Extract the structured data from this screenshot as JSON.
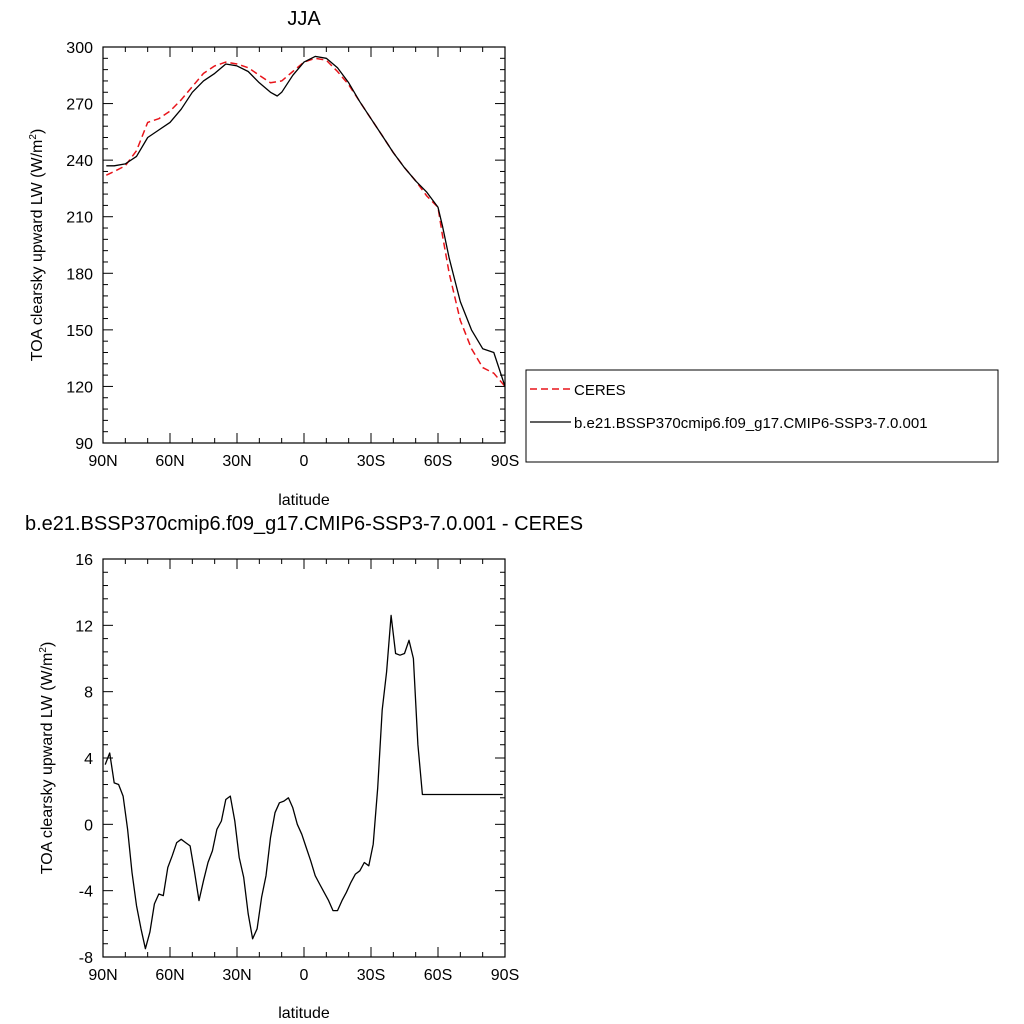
{
  "chart_data": [
    {
      "type": "line",
      "title": "JJA",
      "xlabel": "latitude",
      "ylabel": "TOA clearsky upward LW (W/m",
      "ylabel_sup": "2",
      "ylabel_close": ")",
      "xlim": [
        90,
        -90
      ],
      "ylim": [
        90,
        300
      ],
      "xticks": [
        90,
        60,
        30,
        0,
        -30,
        -60,
        -90
      ],
      "xtick_labels": [
        "90N",
        "60N",
        "30N",
        "0",
        "30S",
        "60S",
        "90S"
      ],
      "yticks": [
        90,
        120,
        150,
        180,
        210,
        240,
        270,
        300
      ],
      "ytick_labels": [
        "90",
        "120",
        "150",
        "180",
        "210",
        "240",
        "270",
        "300"
      ],
      "legend_position": "right",
      "series": [
        {
          "name": "CERES",
          "color": "#e8141a",
          "dash": "dashed",
          "x": [
            88.5,
            85,
            80,
            75,
            70,
            65,
            60,
            55,
            50,
            45,
            40,
            35,
            30,
            25,
            20,
            15,
            10,
            5,
            0,
            -5,
            -10,
            -15,
            -20,
            -25,
            -30,
            -35,
            -40,
            -45,
            -50,
            -55,
            -60,
            -62,
            -65,
            -70,
            -75,
            -80,
            -85,
            -90
          ],
          "y": [
            232,
            234,
            237,
            245,
            260,
            262,
            266,
            272,
            279,
            286,
            290,
            292,
            291,
            289,
            285,
            281,
            282,
            287,
            292,
            294,
            293,
            287,
            280,
            271,
            262,
            253,
            244,
            236,
            229,
            221,
            215,
            200,
            180,
            155,
            140,
            130,
            127,
            120
          ]
        },
        {
          "name": "b.e21.BSSP370cmip6.f09_g17.CMIP6-SSP3-7.0.001",
          "color": "#000000",
          "dash": "solid",
          "x": [
            88.5,
            85,
            80,
            75,
            70,
            65,
            60,
            55,
            50,
            45,
            40,
            35,
            30,
            25,
            20,
            15,
            12,
            10,
            5,
            0,
            -5,
            -10,
            -15,
            -20,
            -25,
            -30,
            -35,
            -40,
            -45,
            -50,
            -55,
            -60,
            -62,
            -65,
            -70,
            -75,
            -80,
            -85,
            -90
          ],
          "y": [
            237,
            237,
            238,
            242,
            252,
            256,
            260,
            267,
            276,
            282,
            286,
            291,
            290,
            287,
            281,
            276,
            274,
            276,
            285,
            292,
            295,
            294,
            289,
            281,
            271,
            262,
            253,
            244,
            236,
            229,
            223,
            215,
            205,
            188,
            165,
            150,
            140,
            138,
            120
          ]
        }
      ]
    },
    {
      "type": "line",
      "title": "b.e21.BSSP370cmip6.f09_g17.CMIP6-SSP3-7.0.001 - CERES",
      "xlabel": "latitude",
      "ylabel": "TOA clearsky upward LW (W/m",
      "ylabel_sup": "2",
      "ylabel_close": ")",
      "xlim": [
        90,
        -90
      ],
      "ylim": [
        -8,
        16
      ],
      "xticks": [
        90,
        60,
        30,
        0,
        -30,
        -60,
        -90
      ],
      "xtick_labels": [
        "90N",
        "60N",
        "30N",
        "0",
        "30S",
        "60S",
        "90S"
      ],
      "yticks": [
        -8,
        -4,
        0,
        4,
        8,
        12,
        16
      ],
      "ytick_labels": [
        "-8",
        "-4",
        "0",
        "4",
        "8",
        "12",
        "16"
      ],
      "series": [
        {
          "color": "#000000",
          "dash": "solid",
          "x": [
            89,
            87,
            85,
            83,
            81,
            79,
            77,
            75,
            73,
            71,
            69,
            67,
            65,
            63,
            61,
            59,
            57,
            55,
            53,
            51,
            49,
            47,
            45,
            43,
            41,
            39,
            37,
            35,
            33,
            31,
            29,
            27,
            25,
            23,
            21,
            19,
            17,
            15,
            13,
            11,
            9,
            7,
            5,
            3,
            1,
            -1,
            -3,
            -5,
            -7,
            -9,
            -11,
            -13,
            -15,
            -17,
            -19,
            -21,
            -23,
            -25,
            -27,
            -29,
            -31,
            -33,
            -35,
            -37,
            -39,
            -41,
            -43,
            -45,
            -47,
            -49,
            -51,
            -53,
            -55,
            -57,
            -59,
            -61,
            -63,
            -65,
            -67,
            -69,
            -71,
            -73,
            -75,
            -77,
            -79,
            -81,
            -83,
            -85,
            -87,
            -89
          ],
          "y": [
            3.6,
            4.3,
            2.5,
            2.4,
            1.7,
            -0.3,
            -2.9,
            -4.9,
            -6.3,
            -7.5,
            -6.5,
            -4.8,
            -4.2,
            -4.3,
            -2.6,
            -1.9,
            -1.1,
            -0.9,
            -1.1,
            -1.3,
            -2.9,
            -4.6,
            -3.4,
            -2.3,
            -1.6,
            -0.3,
            0.2,
            1.5,
            1.7,
            0.2,
            -2.0,
            -3.2,
            -5.4,
            -6.9,
            -6.3,
            -4.4,
            -3.1,
            -0.8,
            0.7,
            1.3,
            1.4,
            1.6,
            1.0,
            0.0,
            -0.6,
            -1.4,
            -2.2,
            -3.1,
            -3.6,
            -4.1,
            -4.6,
            -5.2,
            -5.2,
            -4.6,
            -4.1,
            -3.5,
            -3.0,
            -2.8,
            -2.3,
            -2.5,
            -1.2,
            2.2,
            6.9,
            9.2,
            12.6,
            10.3,
            10.2,
            10.3,
            11.1,
            10.0,
            4.8,
            1.8,
            1.8,
            1.8,
            1.8,
            1.8,
            1.8,
            1.8,
            1.8,
            1.8,
            1.8,
            1.8,
            1.8,
            1.8,
            1.8,
            1.8,
            1.8,
            1.8,
            1.8,
            1.8
          ]
        }
      ]
    }
  ]
}
